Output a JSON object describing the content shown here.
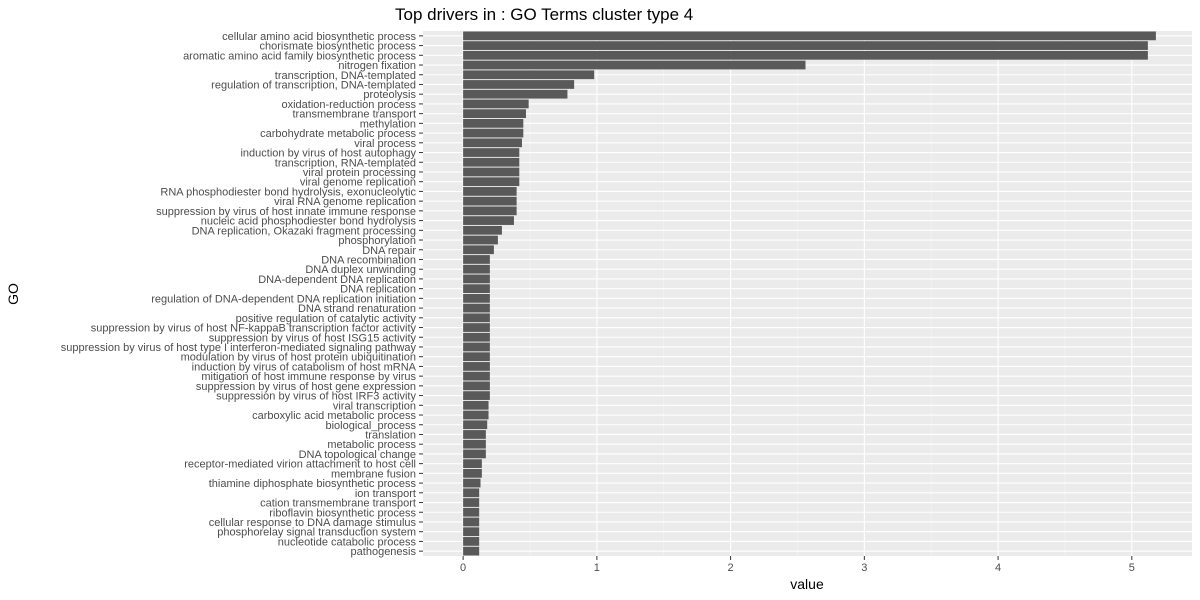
{
  "chart_data": {
    "type": "bar",
    "orientation": "horizontal",
    "title": "Top drivers in  : GO  Terms cluster type 4",
    "xlabel": "value",
    "ylabel": "GO",
    "xlim": [
      -0.3,
      5.45
    ],
    "xticks": [
      0,
      1,
      2,
      3,
      4,
      5
    ],
    "grid": true,
    "bar_color": "#595959",
    "panel_color": "#ebebeb",
    "categories": [
      "cellular amino acid biosynthetic process",
      "chorismate biosynthetic process",
      "aromatic amino acid family biosynthetic process",
      "nitrogen fixation",
      "transcription, DNA-templated",
      "regulation of transcription, DNA-templated",
      "proteolysis",
      "oxidation-reduction process",
      "transmembrane transport",
      "methylation",
      "carbohydrate metabolic process",
      "viral process",
      "induction by virus of host autophagy",
      "transcription, RNA-templated",
      "viral protein processing",
      "viral genome replication",
      "RNA phosphodiester bond hydrolysis, exonucleolytic",
      "viral RNA genome replication",
      "suppression by virus of host innate immune response",
      "nucleic acid phosphodiester bond hydrolysis",
      "DNA replication, Okazaki fragment processing",
      "phosphorylation",
      "DNA repair",
      "DNA recombination",
      "DNA duplex unwinding",
      "DNA-dependent DNA replication",
      "DNA replication",
      "regulation of DNA-dependent DNA replication initiation",
      "DNA strand renaturation",
      "positive regulation of catalytic activity",
      "suppression by virus of host NF-kappaB transcription factor activity",
      "suppression by virus of host ISG15 activity",
      "suppression by virus of host type I interferon-mediated signaling pathway",
      "modulation by virus of host protein ubiquitination",
      "induction by virus of catabolism of host mRNA",
      "mitigation of host immune response by virus",
      "suppression by virus of host gene expression",
      "suppression by virus of host IRF3 activity",
      "viral transcription",
      "carboxylic acid metabolic process",
      "biological_process",
      "translation",
      "metabolic process",
      "DNA topological change",
      "receptor-mediated virion attachment to host cell",
      "membrane fusion",
      "thiamine diphosphate biosynthetic process",
      "ion transport",
      "cation transmembrane transport",
      "riboflavin biosynthetic process",
      "cellular response to DNA damage stimulus",
      "phosphorelay signal transduction system",
      "nucleotide catabolic process",
      "pathogenesis"
    ],
    "values": [
      5.18,
      5.12,
      5.12,
      2.56,
      0.98,
      0.83,
      0.78,
      0.49,
      0.47,
      0.45,
      0.45,
      0.44,
      0.42,
      0.42,
      0.42,
      0.42,
      0.4,
      0.4,
      0.4,
      0.38,
      0.29,
      0.26,
      0.23,
      0.2,
      0.2,
      0.2,
      0.2,
      0.2,
      0.2,
      0.2,
      0.2,
      0.2,
      0.2,
      0.2,
      0.2,
      0.2,
      0.2,
      0.2,
      0.19,
      0.19,
      0.18,
      0.17,
      0.17,
      0.17,
      0.14,
      0.14,
      0.13,
      0.12,
      0.12,
      0.12,
      0.12,
      0.12,
      0.12,
      0.12
    ]
  }
}
